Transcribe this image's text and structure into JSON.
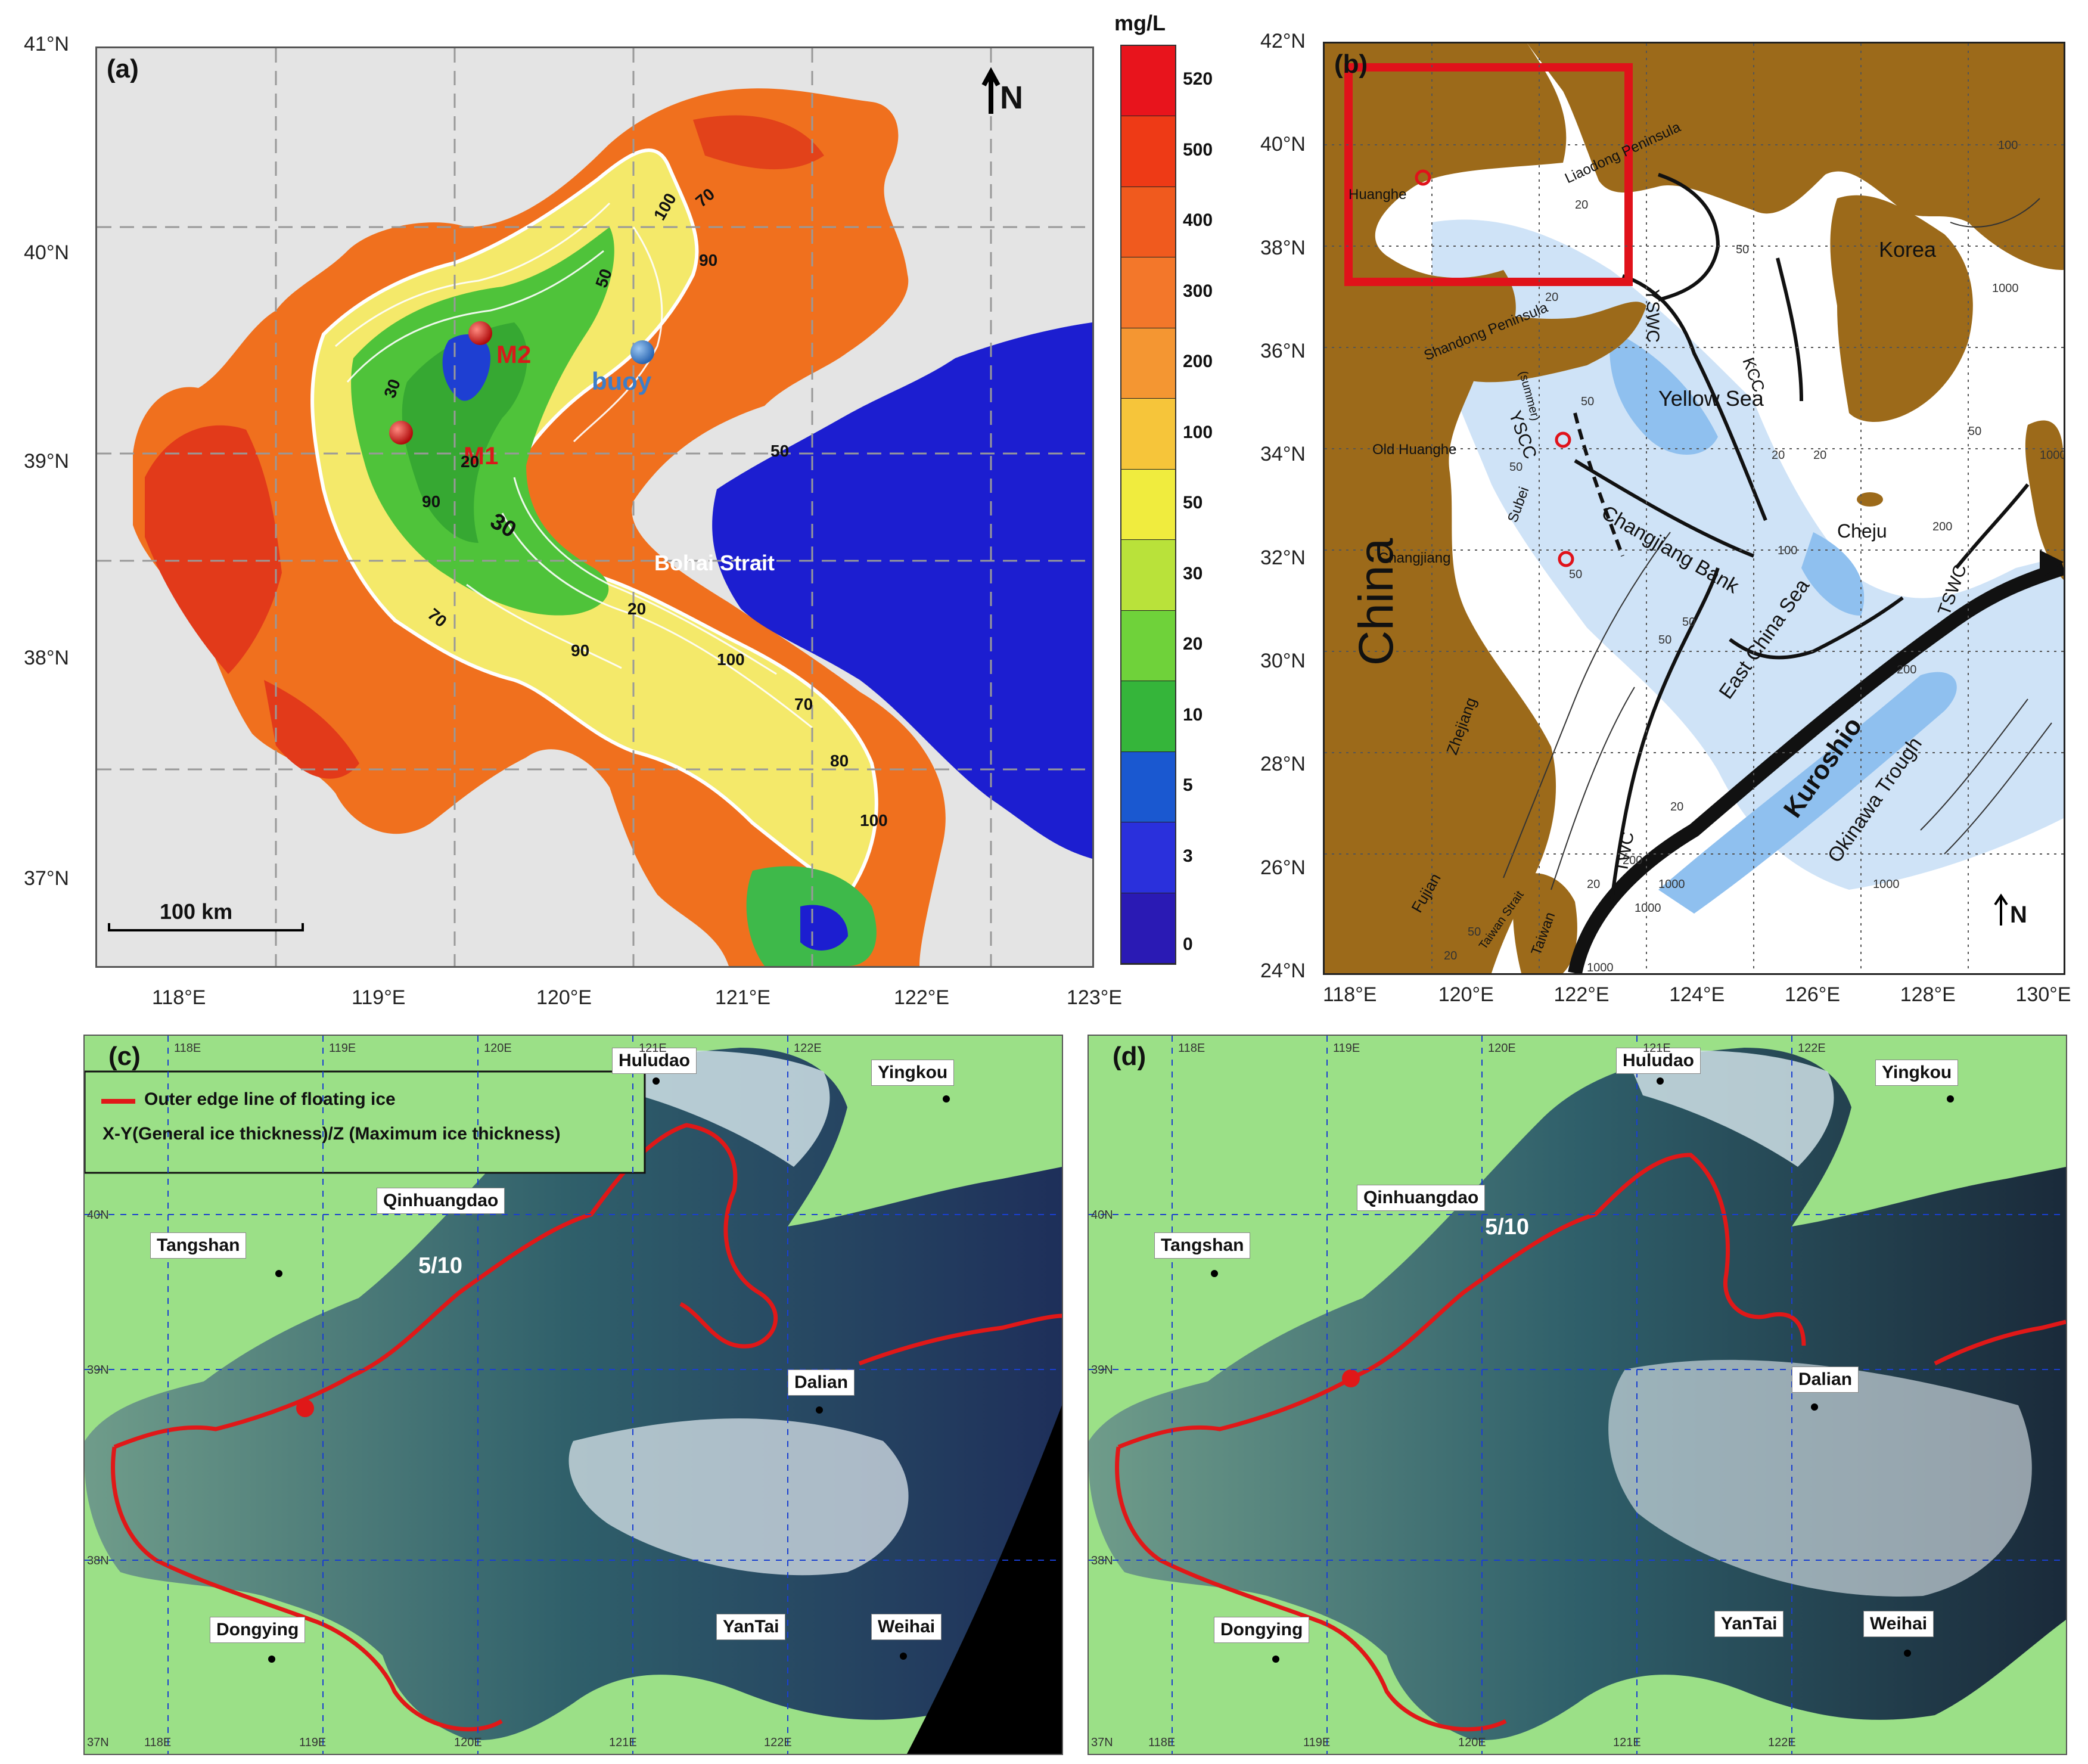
{
  "panel_a": {
    "label": "(a)",
    "north_label": "N",
    "unit": "mg/L",
    "colorbar_ticks": [
      "520",
      "500",
      "400",
      "300",
      "200",
      "100",
      "50",
      "30",
      "20",
      "10",
      "5",
      "3",
      "0"
    ],
    "colorbar_colors": [
      "#e8141c",
      "#ee3a16",
      "#f05a1e",
      "#f3772a",
      "#f49632",
      "#f6c53a",
      "#f0ec3e",
      "#b9e23a",
      "#6fd23a",
      "#35b53a",
      "#1a58d0",
      "#2a30dc",
      "#2a1ab4"
    ],
    "lat_ticks": [
      "41°N",
      "40°N",
      "39°N",
      "38°N",
      "37°N"
    ],
    "lon_ticks": [
      "118°E",
      "119°E",
      "120°E",
      "121°E",
      "122°E",
      "123°E"
    ],
    "scale_bar": "100 km",
    "points": [
      {
        "name": "M1",
        "color": "#cc1414"
      },
      {
        "name": "M2",
        "color": "#cc1414"
      },
      {
        "name": "buoy",
        "color": "#3d7ec9"
      }
    ],
    "place_label": "Bohai Strait",
    "contour_labels": [
      "100",
      "70",
      "30",
      "20",
      "50",
      "90",
      "30",
      "20",
      "100",
      "70",
      "90",
      "80",
      "100",
      "50",
      "90",
      "70"
    ]
  },
  "panel_b": {
    "label": "(b)",
    "north_label": "N",
    "lat_ticks": [
      "42°N",
      "40°N",
      "38°N",
      "36°N",
      "34°N",
      "32°N",
      "30°N",
      "28°N",
      "26°N",
      "24°N"
    ],
    "lon_ticks": [
      "118°E",
      "120°E",
      "122°E",
      "124°E",
      "126°E",
      "128°E",
      "130°E"
    ],
    "labels": {
      "china": "China",
      "korea": "Korea",
      "yellow_sea": "Yellow Sea",
      "east_china_sea": "East China Sea",
      "kuroshio": "Kuroshio",
      "okinawa": "Okinawa   Trough",
      "changjiang_bank": "Changjiang Bank",
      "cheju": "Cheju",
      "liaodong": "Liaodong Peninsula",
      "shandong": "Shandong Peninsula",
      "huanghe": "Huanghe",
      "old_huanghe": "Old Huanghe",
      "changjiang": "Changjiang",
      "subei": "Subei",
      "zhejiang": "Zhejiang",
      "fujian": "Fujian",
      "taiwan": "Taiwan",
      "taiwan_strait": "Taiwan Strait",
      "yswc": "YSWC",
      "kcc": "KCC",
      "yscc": "YSCC",
      "tswc": "TSWC",
      "twc": "TWC",
      "summer": "(summer)",
      "depths": [
        "20",
        "50",
        "20",
        "50",
        "50",
        "100",
        "50",
        "20",
        "20",
        "50",
        "200",
        "1000",
        "1000",
        "1000",
        "200",
        "1000",
        "1000",
        "50",
        "20",
        "20",
        "100",
        "50",
        "1000",
        "200",
        "50",
        "20"
      ]
    }
  },
  "panel_c": {
    "label": "(c)",
    "legend_line": "Outer edge line of floating ice",
    "legend_note": "X-Y(General ice thickness)/Z (Maximum ice thickness)",
    "ice_value": "5/10",
    "cities": [
      "Huludao",
      "Yingkou",
      "Qinhuangdao",
      "Tangshan",
      "Dalian",
      "Dongying",
      "YanTai",
      "Weihai"
    ],
    "grid_top": [
      "118E",
      "119E",
      "120E",
      "121E",
      "122E"
    ],
    "grid_bottom": [
      "118E",
      "119E",
      "120E",
      "121E",
      "122E"
    ],
    "grid_left": [
      "40N",
      "39N",
      "38N",
      "37N"
    ]
  },
  "panel_d": {
    "label": "(d)",
    "ice_value": "5/10",
    "cities": [
      "Huludao",
      "Yingkou",
      "Qinhuangdao",
      "Tangshan",
      "Dalian",
      "Dongying",
      "YanTai",
      "Weihai"
    ],
    "grid_top": [
      "118E",
      "119E",
      "120E",
      "121E",
      "122E"
    ],
    "grid_bottom": [
      "118E",
      "119E",
      "120E",
      "121E",
      "122E"
    ],
    "grid_left": [
      "40N",
      "39N",
      "38N",
      "37N"
    ]
  }
}
